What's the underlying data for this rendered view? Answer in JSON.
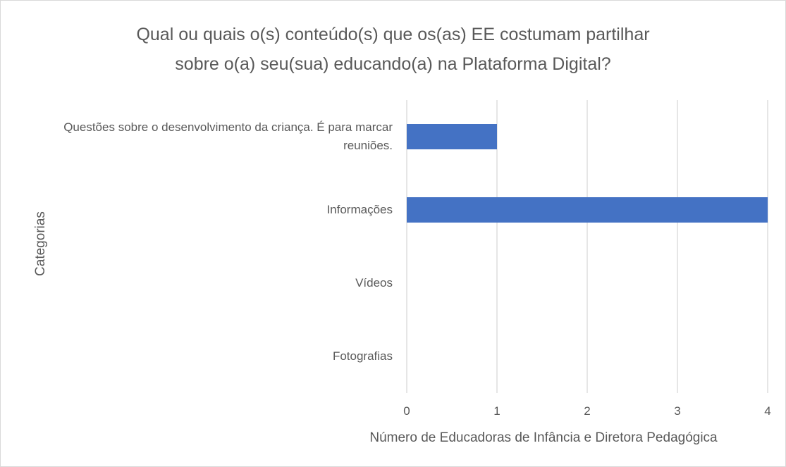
{
  "chart_data": {
    "type": "bar",
    "orientation": "horizontal",
    "title": [
      "Qual ou quais o(s) conteúdo(s) que os(as) EE costumam partilhar",
      "sobre o(a) seu(sua) educando(a) na Plataforma Digital?"
    ],
    "categories": [
      "Questões sobre o desenvolvimento da criança. É para marcar reuniões.",
      "Informações",
      "Vídeos",
      "Fotografias"
    ],
    "values": [
      1,
      4,
      0,
      0
    ],
    "color": "#4472c4",
    "xlim": [
      0,
      4
    ],
    "xticks": [
      0,
      1,
      2,
      3,
      4
    ],
    "grid": true,
    "xlabel": "Número de Educadoras de Infância e Diretora Pedagógica",
    "ylabel": "Categorias"
  }
}
